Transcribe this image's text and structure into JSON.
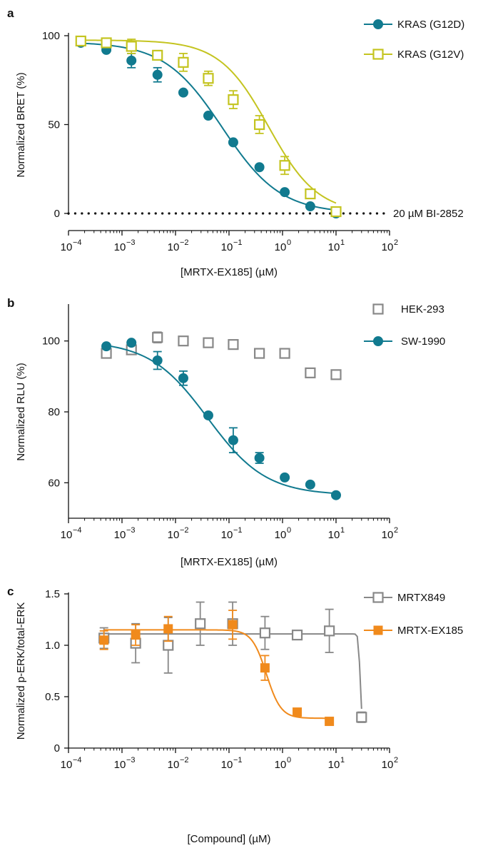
{
  "chart_data": [
    {
      "panel_label": "a",
      "type": "line",
      "xlabel": "[MRTX-EX185] (µM)",
      "ylabel": "Normalized BRET (%)",
      "xscale": "log",
      "xlim": [
        0.0001,
        100
      ],
      "ylim": [
        0,
        100
      ],
      "x_ticks": [
        "10",
        "10",
        "10",
        "10",
        "10",
        "10",
        "10"
      ],
      "x_tick_exp": [
        "−4",
        "−3",
        "−2",
        "−1",
        "0",
        "1",
        "2"
      ],
      "y_ticks": [
        "0",
        "50",
        "100"
      ],
      "baseline_label": "20 µM BI-2852",
      "legend_position": "top-right",
      "series": [
        {
          "name": "KRAS (G12D)",
          "color": "#117a8f",
          "marker": "filled-circle",
          "x": [
            0.00017,
            0.00051,
            0.0015,
            0.0046,
            0.014,
            0.041,
            0.12,
            0.37,
            1.1,
            3.3,
            10
          ],
          "y": [
            96,
            92,
            86,
            78,
            68,
            55,
            40,
            26,
            12,
            4,
            0
          ],
          "err": [
            1,
            1,
            4,
            4,
            1,
            1,
            1,
            1,
            1,
            1,
            1
          ]
        },
        {
          "name": "KRAS (G12V)",
          "color": "#c4c420",
          "marker": "open-square",
          "x": [
            0.00017,
            0.00051,
            0.0015,
            0.0046,
            0.014,
            0.041,
            0.12,
            0.37,
            1.1,
            3.3,
            10
          ],
          "y": [
            97,
            96,
            94,
            89,
            85,
            76,
            64,
            50,
            27,
            11,
            1
          ],
          "err": [
            2,
            2,
            4,
            2,
            5,
            4,
            5,
            5,
            5,
            2,
            2
          ]
        }
      ]
    },
    {
      "panel_label": "b",
      "type": "line",
      "xlabel": "[MRTX-EX185] (µM)",
      "ylabel": "Normalized RLU (%)",
      "xscale": "log",
      "xlim": [
        0.0001,
        100
      ],
      "ylim": [
        50,
        110
      ],
      "x_ticks": [
        "10",
        "10",
        "10",
        "10",
        "10",
        "10",
        "10"
      ],
      "x_tick_exp": [
        "−4",
        "−3",
        "−2",
        "−1",
        "0",
        "1",
        "2"
      ],
      "y_ticks": [
        "60",
        "80",
        "100"
      ],
      "legend_position": "top-right",
      "series": [
        {
          "name": "HEK-293",
          "color": "#888888",
          "marker": "open-square",
          "x": [
            0.00051,
            0.0015,
            0.0046,
            0.014,
            0.041,
            0.12,
            0.37,
            1.1,
            3.3,
            10
          ],
          "y": [
            96.5,
            97.5,
            101,
            100,
            99.5,
            99,
            96.5,
            96.5,
            91,
            90.5
          ],
          "err": [
            0.8,
            0.8,
            1.5,
            0.5,
            0.5,
            0.5,
            0.5,
            0.5,
            0.5,
            1
          ]
        },
        {
          "name": "SW-1990",
          "color": "#117a8f",
          "marker": "filled-circle",
          "x": [
            0.00051,
            0.0015,
            0.0046,
            0.014,
            0.041,
            0.12,
            0.37,
            1.1,
            3.3,
            10
          ],
          "y": [
            98.5,
            99.5,
            94.5,
            89.5,
            79,
            72,
            67,
            61.5,
            59.5,
            56.5
          ],
          "err": [
            0.5,
            0.5,
            2.5,
            2,
            0.5,
            3.5,
            1.5,
            0.5,
            0.5,
            0.5
          ]
        }
      ]
    },
    {
      "panel_label": "c",
      "type": "line",
      "xlabel": "[Compound] (µM)",
      "ylabel": "Normalized p-ERK/total-ERK",
      "xscale": "log",
      "xlim": [
        0.0001,
        100
      ],
      "ylim": [
        0,
        1.5
      ],
      "x_ticks": [
        "10",
        "10",
        "10",
        "10",
        "10",
        "10",
        "10"
      ],
      "x_tick_exp": [
        "−4",
        "−3",
        "−2",
        "−1",
        "0",
        "1",
        "2"
      ],
      "y_ticks": [
        "0",
        "0.5",
        "1.0",
        "1.5"
      ],
      "legend_position": "top-right",
      "series": [
        {
          "name": "MRTX849",
          "color": "#888888",
          "marker": "open-square",
          "x": [
            0.00046,
            0.0018,
            0.0073,
            0.029,
            0.117,
            0.47,
            1.88,
            7.5,
            30
          ],
          "y": [
            1.07,
            1.02,
            1.0,
            1.21,
            1.21,
            1.12,
            1.1,
            1.14,
            0.3
          ],
          "err": [
            0.1,
            0.19,
            0.27,
            0.21,
            0.21,
            0.16,
            0.04,
            0.21,
            0.05
          ]
        },
        {
          "name": "MRTX-EX185",
          "color": "#f08a1c",
          "marker": "filled-square",
          "x": [
            0.00046,
            0.0018,
            0.0073,
            0.117,
            0.47,
            1.88,
            7.5
          ],
          "y": [
            1.05,
            1.1,
            1.16,
            1.2,
            0.78,
            0.35,
            0.26
          ],
          "err": [
            0.09,
            0.1,
            0.12,
            0.14,
            0.12,
            0.02,
            0.02
          ]
        }
      ]
    }
  ]
}
